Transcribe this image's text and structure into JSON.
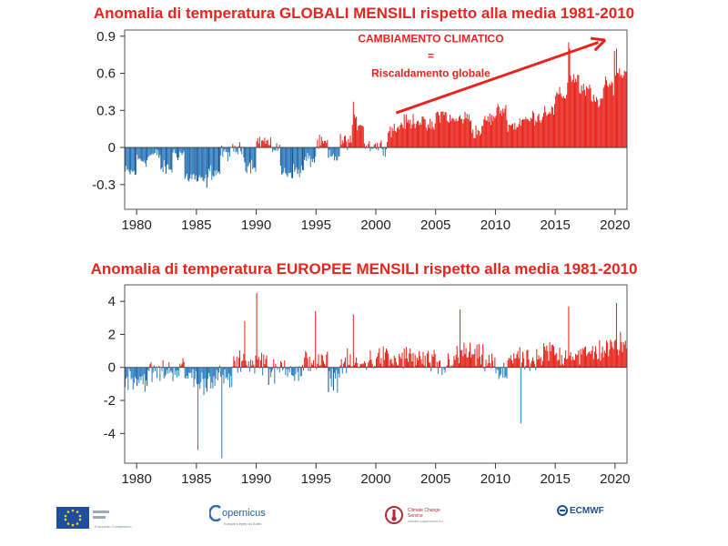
{
  "colors": {
    "title": "#e8241c",
    "warm": "#e8241c",
    "cold": "#2f7fc1",
    "cold_dark": "#1d4f86"
  },
  "footer": {
    "logo_ec": "European Commission",
    "logo_copernicus": "opernicus",
    "copernicus_sub": "Europe's eyes on Earth",
    "logo_c3s": "Climate Change Service",
    "c3s_sub": "climate.copernicus.eu",
    "logo_ecmwf": "ECMWF"
  },
  "chart_data": [
    {
      "type": "bar",
      "title": "Anomalia di temperatura GLOBALI MENSILI rispetto alla media 1981-2010",
      "xlabel": "",
      "ylabel": "",
      "xlim": [
        1979,
        2021
      ],
      "ylim": [
        -0.5,
        0.95
      ],
      "yticks": [
        -0.3,
        0,
        0.3,
        0.6,
        0.9
      ],
      "yticklabels": [
        "-0.3",
        "0",
        "0.3",
        "0.6",
        "0.9"
      ],
      "xticks": [
        1980,
        1985,
        1990,
        1995,
        2000,
        2005,
        2010,
        2015,
        2020
      ],
      "annotation": [
        "CAMBIAMENTO CLIMATICO",
        "=",
        "Riscaldamento globale"
      ],
      "resolution": "monthly (values below are annual means; monthly bars vary around them)",
      "series": [
        {
          "x": [
            1979,
            1980,
            1981,
            1982,
            1983,
            1984,
            1985,
            1986,
            1987,
            1988,
            1989,
            1990,
            1991,
            1992,
            1993,
            1994,
            1995,
            1996,
            1997,
            1998,
            1999,
            2000,
            2001,
            2002,
            2003,
            2004,
            2005,
            2006,
            2007,
            2008,
            2009,
            2010,
            2011,
            2012,
            2013,
            2014,
            2015,
            2016,
            2017,
            2018,
            2019,
            2020
          ],
          "values": [
            -0.2,
            -0.1,
            -0.06,
            -0.17,
            -0.05,
            -0.24,
            -0.27,
            -0.2,
            -0.05,
            -0.02,
            -0.14,
            0.05,
            0.0,
            -0.2,
            -0.19,
            -0.1,
            0.03,
            -0.08,
            0.05,
            0.2,
            0.02,
            0.01,
            0.15,
            0.2,
            0.22,
            0.17,
            0.27,
            0.22,
            0.24,
            0.13,
            0.23,
            0.3,
            0.18,
            0.22,
            0.25,
            0.3,
            0.42,
            0.56,
            0.46,
            0.38,
            0.5,
            0.6
          ]
        }
      ]
    },
    {
      "type": "bar",
      "title": "Anomalia di temperatura EUROPEE MENSILI rispetto alla media 1981-2010",
      "xlabel": "",
      "ylabel": "",
      "xlim": [
        1979,
        2021
      ],
      "ylim": [
        -5.8,
        5.0
      ],
      "yticks": [
        -4,
        -2,
        0,
        2,
        4
      ],
      "yticklabels": [
        "-4",
        "-2",
        "0",
        "2",
        "4"
      ],
      "xticks": [
        1980,
        1985,
        1990,
        1995,
        2000,
        2005,
        2010,
        2015,
        2020
      ],
      "resolution": "monthly (values below are annual means; monthly bars vary around them)",
      "series": [
        {
          "x": [
            1979,
            1980,
            1981,
            1982,
            1983,
            1984,
            1985,
            1986,
            1987,
            1988,
            1989,
            1990,
            1991,
            1992,
            1993,
            1994,
            1995,
            1996,
            1997,
            1998,
            1999,
            2000,
            2001,
            2002,
            2003,
            2004,
            2005,
            2006,
            2007,
            2008,
            2009,
            2010,
            2011,
            2012,
            2013,
            2014,
            2015,
            2016,
            2017,
            2018,
            2019,
            2020
          ],
          "values": [
            -0.6,
            -0.7,
            -0.3,
            -0.2,
            -0.1,
            -0.5,
            -0.9,
            -0.6,
            -0.8,
            0.2,
            0.3,
            0.4,
            -0.3,
            0.1,
            -0.4,
            0.4,
            0.2,
            -0.6,
            0.2,
            0.1,
            0.4,
            0.6,
            0.4,
            0.6,
            0.5,
            0.3,
            -0.1,
            0.5,
            0.9,
            0.6,
            0.3,
            -0.5,
            0.7,
            0.3,
            0.3,
            1.0,
            0.7,
            0.8,
            0.8,
            1.0,
            1.1,
            1.4
          ]
        }
      ]
    }
  ]
}
